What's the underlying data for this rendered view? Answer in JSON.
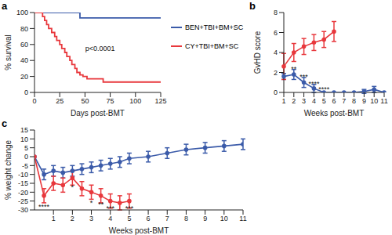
{
  "chart_data": [
    {
      "panel": "a",
      "type": "line",
      "line_style": "step",
      "marker": "none",
      "x_label": "Days post-BMT",
      "y_label": "% survival",
      "xlim": [
        0,
        125
      ],
      "xticks": [
        0,
        25,
        50,
        75,
        100,
        125
      ],
      "ylim": [
        0,
        100
      ],
      "yticks": [
        0,
        20,
        40,
        60,
        80,
        100
      ],
      "annotations": [
        {
          "x": 65,
          "y": 55,
          "text": "p<0.0001"
        }
      ],
      "series": [
        {
          "name": "BEN+TBI+BM+SC",
          "color": "#3b5ba9",
          "x": [
            0,
            45,
            125
          ],
          "values": [
            100,
            93.3,
            93.3
          ]
        },
        {
          "name": "CY+TBI+BM+SC",
          "color": "#e8383d",
          "x": [
            0,
            8,
            10,
            12,
            14,
            17,
            20,
            22,
            25,
            27,
            30,
            32,
            35,
            37,
            40,
            42,
            45,
            48,
            52,
            68,
            125
          ],
          "values": [
            100,
            95,
            90,
            85,
            80,
            75,
            70,
            65,
            60,
            55,
            50,
            45,
            40,
            35,
            30,
            25,
            22,
            20,
            17,
            13,
            13
          ]
        }
      ]
    },
    {
      "panel": "b",
      "type": "line",
      "marker": "circle",
      "x_label": "Weeks post-BMT",
      "y_label": "GvHD score",
      "categories": [
        "1",
        "2",
        "3",
        "4",
        "5",
        "6",
        "7",
        "8",
        "9",
        "10",
        "11"
      ],
      "ylim": [
        0,
        8
      ],
      "yticks": [
        0,
        2,
        4,
        6,
        8
      ],
      "annotations": [
        {
          "x": "2",
          "y": 2.4,
          "text": "**"
        },
        {
          "x": "3",
          "y": 1.6,
          "text": "***"
        },
        {
          "x": "4",
          "y": 0.9,
          "text": "****"
        },
        {
          "x": "5",
          "y": 0.3,
          "text": "****"
        }
      ],
      "series": [
        {
          "name": "BEN+TBI+BM+SC",
          "color": "#3b5ba9",
          "values": [
            1.6,
            1.8,
            1.0,
            0.4,
            0,
            0,
            0,
            0,
            0.1,
            0.3,
            0
          ],
          "errors": [
            0.3,
            0.5,
            0.5,
            0.4,
            0,
            0,
            0,
            0,
            0.2,
            0.3,
            0
          ]
        },
        {
          "name": "CY+TBI+BM+SC",
          "color": "#e8383d",
          "values": [
            2.6,
            4.0,
            4.6,
            5.0,
            5.3,
            6.1,
            null,
            null,
            null,
            null,
            null
          ],
          "errors": [
            1.3,
            0.9,
            0.8,
            0.8,
            0.8,
            1.0,
            null,
            null,
            null,
            null,
            null
          ]
        }
      ]
    },
    {
      "panel": "c",
      "type": "line",
      "marker": "circle",
      "x_label": "Weeks post-BMT",
      "y_label": "% weight change",
      "x": [
        0,
        0.5,
        1,
        1.5,
        2,
        2.5,
        3,
        3.5,
        4,
        4.5,
        5,
        6,
        7,
        8,
        9,
        10,
        11
      ],
      "xlim": [
        0,
        11
      ],
      "xticks": [
        1,
        2,
        3,
        4,
        5,
        6,
        7,
        8,
        9,
        10,
        11
      ],
      "ylim": [
        -30,
        15
      ],
      "yticks": [
        -30,
        -25,
        -20,
        -15,
        -10,
        -5,
        0,
        5,
        10,
        15
      ],
      "annotations": [
        {
          "x": 0.5,
          "y": -28,
          "text": "****"
        },
        {
          "x": 2,
          "y": -17,
          "text": "*"
        },
        {
          "x": 3,
          "y": -26,
          "text": "*"
        },
        {
          "x": 3.5,
          "y": -27,
          "text": "**"
        },
        {
          "x": 4,
          "y": -29,
          "text": "***"
        },
        {
          "x": 5,
          "y": -29,
          "text": "***"
        }
      ],
      "series": [
        {
          "name": "BEN+TBI+BM+SC",
          "color": "#3b5ba9",
          "values": [
            0,
            -10,
            -8,
            -9,
            -8,
            -7,
            -6,
            -5,
            -4,
            -3,
            -1,
            0,
            2,
            4,
            5,
            6,
            7
          ],
          "errors": [
            0,
            3,
            3,
            3,
            3,
            3,
            3,
            3,
            3,
            3,
            3,
            3,
            3,
            3,
            3,
            3,
            3
          ]
        },
        {
          "name": "CY+TBI+BM+SC",
          "color": "#e8383d",
          "values": [
            0,
            -22,
            -15,
            -16,
            -12,
            -18,
            -20,
            -22,
            -25,
            -26,
            -25,
            null,
            null,
            null,
            null,
            null,
            null
          ],
          "errors": [
            0,
            4,
            4,
            4,
            4,
            4,
            4,
            4,
            4,
            4,
            4,
            null,
            null,
            null,
            null,
            null,
            null
          ]
        }
      ]
    }
  ]
}
